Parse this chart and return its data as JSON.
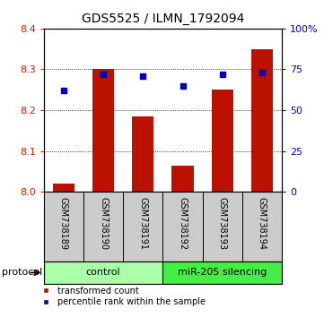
{
  "title": "GDS5525 / ILMN_1792094",
  "samples": [
    "GSM738189",
    "GSM738190",
    "GSM738191",
    "GSM738192",
    "GSM738193",
    "GSM738194"
  ],
  "red_values": [
    8.02,
    8.3,
    8.185,
    8.065,
    8.25,
    8.35
  ],
  "blue_values": [
    62,
    72,
    71,
    65,
    72,
    73
  ],
  "ylim_left": [
    8.0,
    8.4
  ],
  "ylim_right": [
    0,
    100
  ],
  "yticks_left": [
    8.0,
    8.1,
    8.2,
    8.3,
    8.4
  ],
  "yticks_right": [
    0,
    25,
    50,
    75,
    100
  ],
  "groups": [
    {
      "label": "control",
      "start": 0,
      "end": 3,
      "color": "#aaffaa"
    },
    {
      "label": "miR-205 silencing",
      "start": 3,
      "end": 6,
      "color": "#44ee44"
    }
  ],
  "bar_color": "#bb1100",
  "dot_color": "#0000bb",
  "bar_bottom": 8.0,
  "bar_width": 0.55,
  "protocol_label": "protocol",
  "legend_red": "transformed count",
  "legend_blue": "percentile rank within the sample",
  "tick_label_color_left": "#cc2200",
  "tick_label_color_right": "#0000cc",
  "xlabel_bg": "#cccccc",
  "title_fontsize": 10,
  "tick_fontsize": 8,
  "sample_fontsize": 7,
  "group_fontsize": 8,
  "legend_fontsize": 7,
  "protocol_fontsize": 8
}
